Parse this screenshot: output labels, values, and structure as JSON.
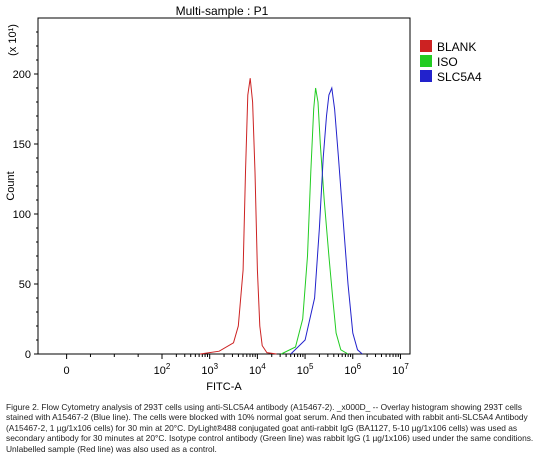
{
  "chart_data": {
    "type": "line",
    "title": "Multi-sample : P1",
    "xlabel": "FITC-A",
    "ylabel": "Count",
    "y_scale_label": "(x 10¹)",
    "x_scale": "log",
    "xlim_log10": [
      -0.6,
      7.2
    ],
    "ylim": [
      0,
      240
    ],
    "x_tick_labels": [
      {
        "base": "0",
        "exp": ""
      },
      {
        "base": "10",
        "exp": "2"
      },
      {
        "base": "10",
        "exp": "3"
      },
      {
        "base": "10",
        "exp": "4"
      },
      {
        "base": "10",
        "exp": "5"
      },
      {
        "base": "10",
        "exp": "6"
      },
      {
        "base": "10",
        "exp": "7"
      }
    ],
    "x_tick_positions_log10": [
      0,
      2,
      3,
      4,
      5,
      6,
      7
    ],
    "y_ticks": [
      0,
      50,
      100,
      150,
      200
    ],
    "legend_position": "top-right",
    "series": [
      {
        "name": "BLANK",
        "color": "#cc2222",
        "x_log10": [
          2.8,
          3.2,
          3.5,
          3.6,
          3.7,
          3.75,
          3.8,
          3.85,
          3.9,
          3.95,
          4.0,
          4.05,
          4.1,
          4.2,
          4.4
        ],
        "y": [
          0,
          2,
          8,
          20,
          60,
          130,
          185,
          197,
          180,
          130,
          60,
          20,
          6,
          1,
          0
        ]
      },
      {
        "name": "ISO",
        "color": "#22cc22",
        "x_log10": [
          4.5,
          4.8,
          4.95,
          5.05,
          5.12,
          5.18,
          5.22,
          5.27,
          5.32,
          5.4,
          5.5,
          5.58,
          5.65,
          5.75,
          5.9
        ],
        "y": [
          0,
          5,
          25,
          70,
          130,
          175,
          190,
          180,
          150,
          110,
          70,
          40,
          15,
          3,
          0
        ]
      },
      {
        "name": "SLC5A4",
        "color": "#2222cc",
        "x_log10": [
          4.7,
          5.0,
          5.2,
          5.3,
          5.38,
          5.45,
          5.5,
          5.56,
          5.62,
          5.7,
          5.8,
          5.9,
          6.0,
          6.1,
          6.2
        ],
        "y": [
          0,
          10,
          40,
          90,
          140,
          170,
          185,
          190,
          175,
          140,
          95,
          50,
          15,
          3,
          0
        ]
      }
    ]
  },
  "caption": "Figure 2. Flow Cytometry analysis of 293T cells using anti-SLC5A4 antibody (A15467-2). _x000D_ -- Overlay histogram showing 293T cells stained with A15467-2 (Blue line). The cells were blocked with 10% normal goat serum. And then incubated with rabbit anti-SLC5A4 Antibody (A15467-2, 1 µg/1x106 cells) for 30 min at 20°C. DyLight®488 conjugated goat anti-rabbit IgG (BA1127, 5-10 µg/1x106 cells) was used as secondary antibody for 30 minutes at 20°C. Isotype control antibody (Green line) was rabbit IgG (1 µg/1x106) used under the same conditions. Unlabelled sample (Red line) was also used as a control."
}
